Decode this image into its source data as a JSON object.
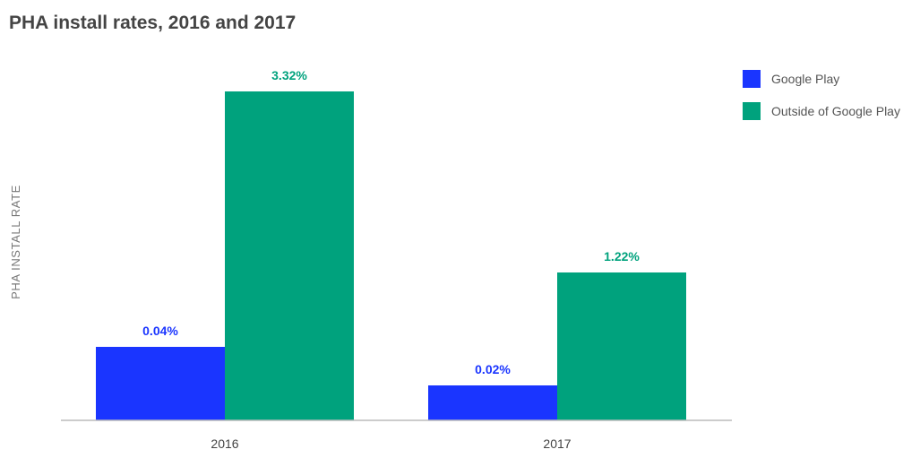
{
  "chart_data": {
    "type": "bar",
    "title": "PHA install rates, 2016 and 2017",
    "xlabel": "",
    "ylabel": "PHA INSTALL RATE",
    "categories": [
      "2016",
      "2017"
    ],
    "series": [
      {
        "name": "Google Play",
        "values": [
          0.04,
          0.02
        ],
        "labels": [
          "0.04%",
          "0.02%"
        ],
        "color": "#1a35ff"
      },
      {
        "name": "Outside of Google Play",
        "values": [
          3.32,
          1.22
        ],
        "labels": [
          "3.32%",
          "1.22%"
        ],
        "color": "#00a27d"
      }
    ],
    "scale": "nonlinear",
    "grid": false,
    "legend": "top-right"
  }
}
